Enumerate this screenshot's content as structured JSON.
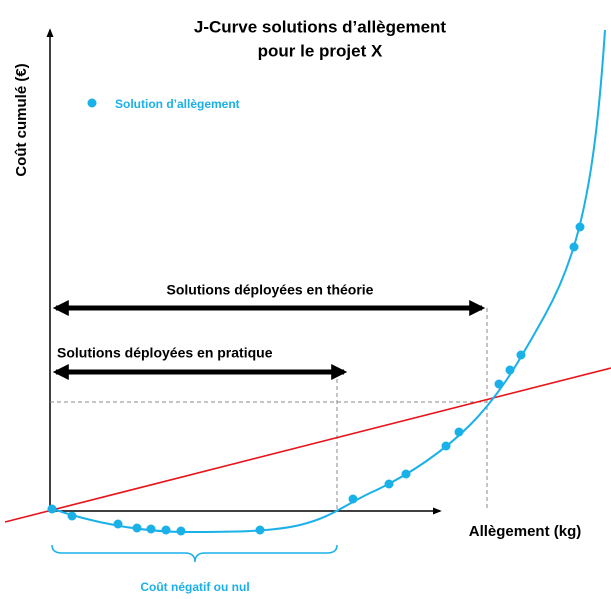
{
  "title": [
    "J-Curve solutions d’allègement",
    "pour le projet X"
  ],
  "y_axis_label": "Coût cumulé (€)",
  "x_axis_label": "Allègement  (kg)",
  "legend": "Solution d’allègement",
  "annotations": {
    "theory": "Solutions déployées en théorie",
    "practice": "Solutions déployées en pratique",
    "negative": "Coût négatif ou nul"
  }
}
